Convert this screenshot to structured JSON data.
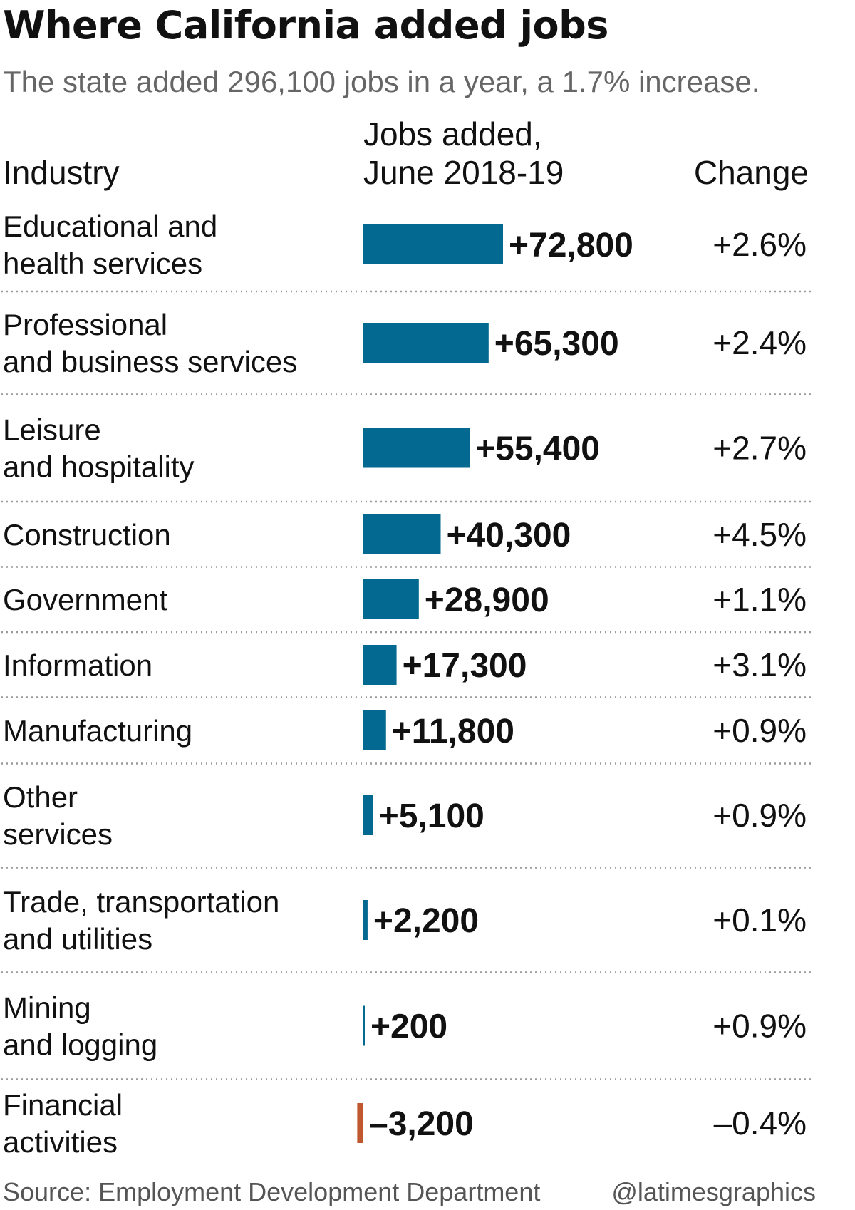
{
  "header": {
    "title": "Where California added jobs",
    "subtitle": "The state added 296,100 jobs in a year, a 1.7% increase."
  },
  "columns": {
    "industry": "Industry",
    "jobs_added_line1": "Jobs added,",
    "jobs_added_line2": "June 2018-19",
    "change": "Change"
  },
  "colors": {
    "positive_bar": "#036990",
    "negative_bar": "#c0582f"
  },
  "chart_data": {
    "type": "bar",
    "orientation": "horizontal",
    "title": "Where California added jobs",
    "subtitle": "The state added 296,100 jobs in a year, a 1.7% increase.",
    "categories": [
      "Educational and health services",
      "Professional and business services",
      "Leisure and hospitality",
      "Construction",
      "Government",
      "Information",
      "Manufacturing",
      "Other services",
      "Trade, transportation and utilities",
      "Mining and logging",
      "Financial activities"
    ],
    "category_lines": [
      [
        "Educational and",
        "health services"
      ],
      [
        "Professional",
        "and business services"
      ],
      [
        "Leisure",
        "and hospitality"
      ],
      [
        "Construction"
      ],
      [
        "Government"
      ],
      [
        "Information"
      ],
      [
        "Manufacturing"
      ],
      [
        "Other",
        "services"
      ],
      [
        "Trade, transportation",
        "and utilities"
      ],
      [
        "Mining",
        "and logging"
      ],
      [
        "Financial",
        "activities"
      ]
    ],
    "values": [
      72800,
      65300,
      55400,
      40300,
      28900,
      17300,
      11800,
      5100,
      2200,
      200,
      -3200
    ],
    "value_labels": [
      "+72,800",
      "+65,300",
      "+55,400",
      "+40,300",
      "+28,900",
      "+17,300",
      "+11,800",
      "+5,100",
      "+2,200",
      "+200",
      "–3,200"
    ],
    "change_labels": [
      "+2.6%",
      "+2.4%",
      "+2.7%",
      "+4.5%",
      "+1.1%",
      "+3.1%",
      "+0.9%",
      "+0.9%",
      "+0.1%",
      "+0.9%",
      "–0.4%"
    ],
    "xlabel": "Jobs added, June 2018-19",
    "ylabel": "Industry",
    "grid": false
  },
  "footer": {
    "source": "Source: Employment Development Department",
    "credit": "@latimesgraphics"
  }
}
